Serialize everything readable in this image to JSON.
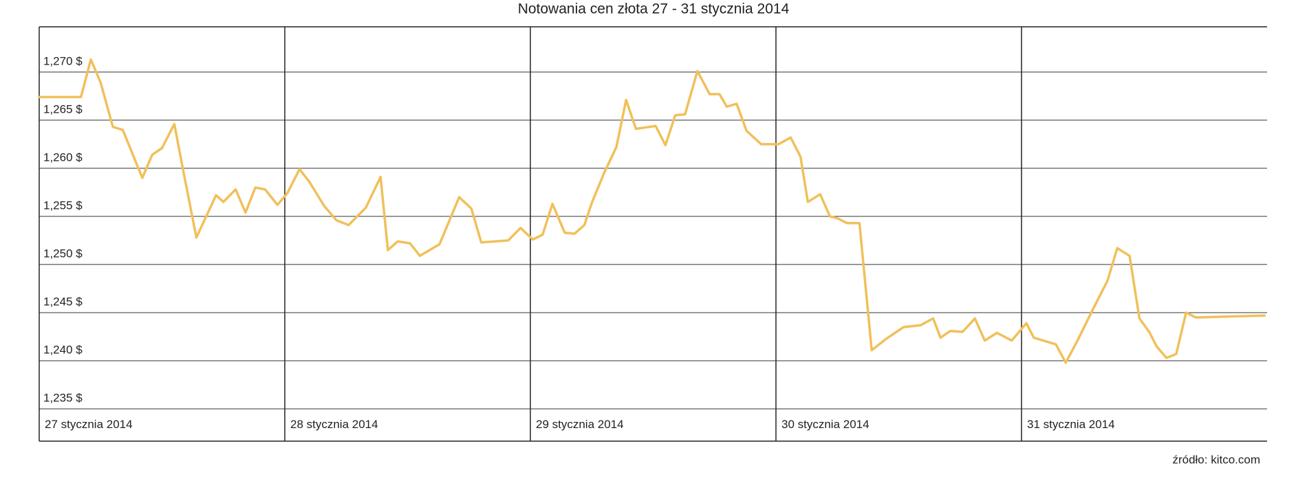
{
  "chart_data": {
    "type": "line",
    "title": "Notowania cen złota 27 - 31 stycznia 2014",
    "source": "źródło: kitco.com",
    "categories": [
      "27 stycznia 2014",
      "28 stycznia 2014",
      "29 stycznia 2014",
      "30 stycznia 2014",
      "31 stycznia 2014"
    ],
    "xlim": [
      0,
      5
    ],
    "ylim": [
      1235,
      1274.7
    ],
    "yticks": [
      {
        "value": 1235,
        "label": "1,235 $"
      },
      {
        "value": 1240,
        "label": "1,240 $"
      },
      {
        "value": 1245,
        "label": "1,245 $"
      },
      {
        "value": 1250,
        "label": "1,250 $"
      },
      {
        "value": 1255,
        "label": "1,255 $"
      },
      {
        "value": 1260,
        "label": "1,260 $"
      },
      {
        "value": 1265,
        "label": "1,265 $"
      },
      {
        "value": 1270,
        "label": "1,270 $"
      }
    ],
    "grid": true,
    "series": [
      {
        "color": "#f0c05a",
        "x": [
          0,
          0.17,
          0.21,
          0.25,
          0.3,
          0.34,
          0.42,
          0.46,
          0.5,
          0.55,
          0.59,
          0.64,
          0.68,
          0.72,
          0.75,
          0.8,
          0.84,
          0.88,
          0.92,
          0.97,
          1.01,
          1.06,
          1.1,
          1.16,
          1.21,
          1.26,
          1.33,
          1.39,
          1.42,
          1.46,
          1.51,
          1.55,
          1.63,
          1.71,
          1.76,
          1.8,
          1.91,
          1.96,
          2.01,
          2.05,
          2.09,
          2.14,
          2.18,
          2.22,
          2.25,
          2.3,
          2.35,
          2.39,
          2.43,
          2.51,
          2.55,
          2.59,
          2.63,
          2.68,
          2.73,
          2.77,
          2.8,
          2.84,
          2.88,
          2.94,
          2.99,
          3.01,
          3.06,
          3.1,
          3.13,
          3.18,
          3.22,
          3.25,
          3.29,
          3.34,
          3.39,
          3.45,
          3.52,
          3.59,
          3.64,
          3.67,
          3.71,
          3.76,
          3.81,
          3.85,
          3.9,
          3.96,
          4.02,
          4.05,
          4.14,
          4.18,
          4.23,
          4.29,
          4.35,
          4.39,
          4.44,
          4.48,
          4.52,
          4.55,
          4.59,
          4.63,
          4.67,
          4.71,
          4.99
        ],
        "values": [
          1267.4,
          1267.4,
          1271.3,
          1268.9,
          1264.3,
          1264.0,
          1259.0,
          1261.4,
          1262.1,
          1264.6,
          1259.3,
          1252.8,
          1255.0,
          1257.2,
          1256.5,
          1257.8,
          1255.4,
          1258.0,
          1257.8,
          1256.2,
          1257.4,
          1259.9,
          1258.6,
          1256.1,
          1254.6,
          1254.1,
          1255.9,
          1259.1,
          1251.5,
          1252.4,
          1252.2,
          1250.9,
          1252.1,
          1257.0,
          1255.8,
          1252.3,
          1252.5,
          1253.8,
          1252.6,
          1253.1,
          1256.3,
          1253.3,
          1253.2,
          1254.1,
          1256.4,
          1259.5,
          1262.2,
          1267.1,
          1264.1,
          1264.4,
          1262.4,
          1265.5,
          1265.6,
          1270.1,
          1267.7,
          1267.7,
          1266.4,
          1266.7,
          1263.9,
          1262.5,
          1262.5,
          1262.5,
          1263.2,
          1261.2,
          1256.5,
          1257.3,
          1255.0,
          1254.8,
          1254.3,
          1254.3,
          1241.1,
          1242.3,
          1243.5,
          1243.7,
          1244.4,
          1242.4,
          1243.1,
          1243.0,
          1244.4,
          1242.1,
          1242.9,
          1242.1,
          1243.9,
          1242.4,
          1241.7,
          1239.8,
          1242.2,
          1245.3,
          1248.3,
          1251.7,
          1250.9,
          1244.4,
          1243.0,
          1241.5,
          1240.3,
          1240.7,
          1245.0,
          1244.5,
          1244.7
        ]
      }
    ]
  }
}
